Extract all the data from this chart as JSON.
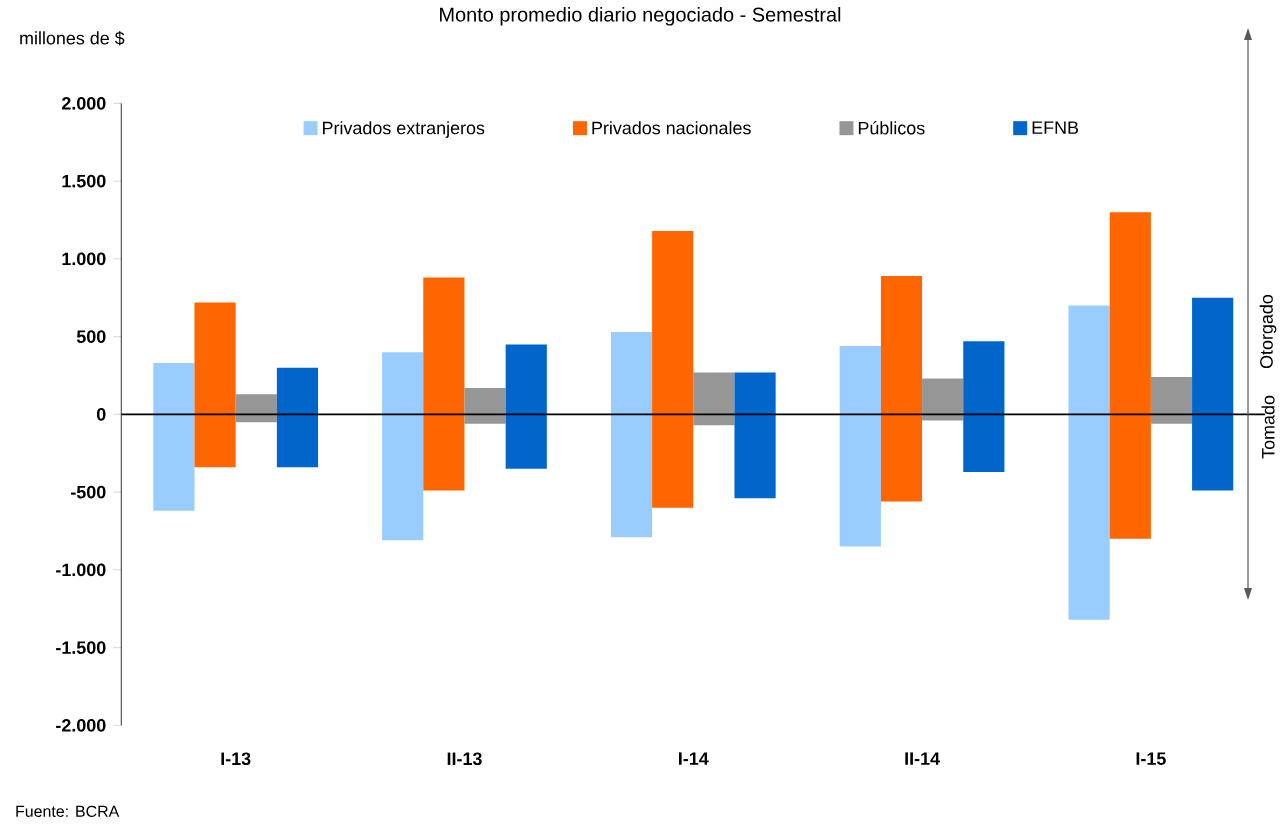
{
  "chart_data": {
    "type": "bar",
    "title": "Monto promedio diario negociado - Semestral",
    "ylabel": "millones de $",
    "categories": [
      "I-13",
      "II-13",
      "I-14",
      "II-14",
      "I-15"
    ],
    "series": [
      {
        "name": "Privados extranjeros",
        "color": "#99ccff",
        "base": [
          -620,
          -810,
          -790,
          -850,
          -1320
        ],
        "values": [
          950,
          1210,
          1320,
          1290,
          2020
        ]
      },
      {
        "name": "Privados nacionales",
        "color": "#ff6600",
        "base": [
          -340,
          -490,
          -600,
          -560,
          -800
        ],
        "values": [
          1060,
          1370,
          1780,
          1450,
          2100
        ]
      },
      {
        "name": "Públicos",
        "color": "#969696",
        "base": [
          -50,
          -60,
          -70,
          -40,
          -60
        ],
        "values": [
          180,
          230,
          340,
          270,
          300
        ]
      },
      {
        "name": "EFNB",
        "color": "#0066cc",
        "base": [
          -340,
          -350,
          -540,
          -370,
          -490
        ],
        "values": [
          640,
          800,
          810,
          840,
          1240
        ]
      }
    ],
    "ylim": [
      -2000,
      2000
    ],
    "yticks": [
      {
        "value": -2000,
        "label": "-2.000"
      },
      {
        "value": -1500,
        "label": "-1.500"
      },
      {
        "value": -1000,
        "label": "-1.000"
      },
      {
        "value": -500,
        "label": "-500"
      },
      0,
      500,
      {
        "value": 1000,
        "label": "1.000"
      },
      {
        "value": 1500,
        "label": "1.500"
      },
      {
        "value": 2000,
        "label": "2.000"
      }
    ],
    "legend": "top",
    "annotations": [
      "Otorgado",
      "Tomado",
      "Fuente: BCRA"
    ]
  }
}
